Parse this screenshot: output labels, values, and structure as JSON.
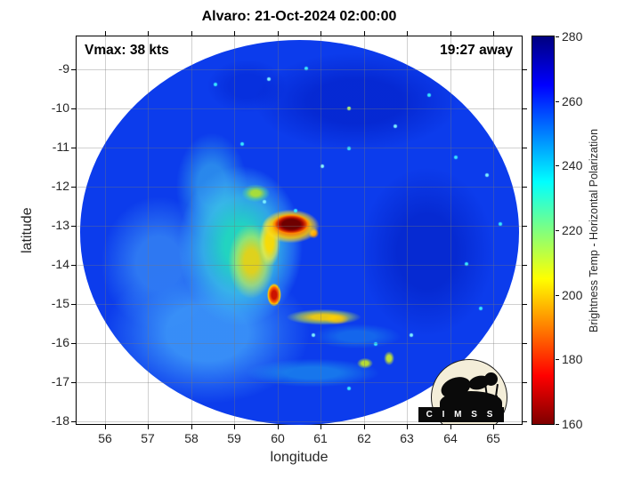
{
  "annotations": {
    "vmax_label": "Vmax: 38 kts",
    "eta_label": "19:27 away"
  },
  "logo": {
    "name": "CIMSS satellite/water-tower logo",
    "banner_text": "C I M S S"
  },
  "chart_data": {
    "type": "heatmap",
    "title": "Alvaro: 21-Oct-2024 02:00:00",
    "xlabel": "longitude",
    "ylabel": "latitude",
    "xlim": [
      55.34,
      65.66
    ],
    "ylim": [
      -18.07,
      -8.16
    ],
    "xticks": [
      56,
      57,
      58,
      59,
      60,
      61,
      62,
      63,
      64,
      65
    ],
    "yticks": [
      -9,
      -10,
      -11,
      -12,
      -13,
      -14,
      -15,
      -16,
      -17,
      -18
    ],
    "grid": true,
    "colorbar": {
      "label": "Brightness Temp - Horizontal Polarization",
      "min": 160,
      "max": 280,
      "ticks": [
        160,
        180,
        200,
        220,
        240,
        260,
        280
      ],
      "colormap": "jet reversed (280 K dark blue at top to 160 K dark red at bottom)"
    },
    "swath": {
      "shape": "circular microwave overpass on white background",
      "center_lon": 60.4,
      "center_lat": -13.1,
      "radius_deg": 5.1,
      "background_tb_K": 253
    },
    "features": [
      {
        "name": "deep convection core arc (dark red)",
        "lon": 60.3,
        "lat": -13.05,
        "tb_K": 165
      },
      {
        "name": "orange/yellow convective shield west of core",
        "lon": 59.7,
        "lat": -13.6,
        "tb_K": 205
      },
      {
        "name": "secondary convective burst (red spot)",
        "lon": 59.9,
        "lat": -14.75,
        "tb_K": 175
      },
      {
        "name": "curved yellow rainband south-east of core",
        "lon": 61.0,
        "lat": -15.3,
        "tb_K": 205
      },
      {
        "name": "cyan/green stratiform shield west of core",
        "lon": 58.9,
        "lat": -13.5,
        "tb_K": 235
      },
      {
        "name": "light-blue moderate-rain sector southwest",
        "lon": 58.3,
        "lat": -16.0,
        "tb_K": 247
      },
      {
        "name": "dark-blue background patches north and east",
        "lon": 62.5,
        "lat": -11.5,
        "tb_K": 262
      },
      {
        "name": "yellow-green shallow convection streaks south",
        "lon": 62.0,
        "lat": -16.5,
        "tb_K": 215
      }
    ]
  },
  "colors": {
    "accent_core": "#6e0000",
    "background_blue": "#0c3cec",
    "grid": "#d5d5d5",
    "tick_text": "#262626",
    "logo_cream": "#f4eed9"
  }
}
